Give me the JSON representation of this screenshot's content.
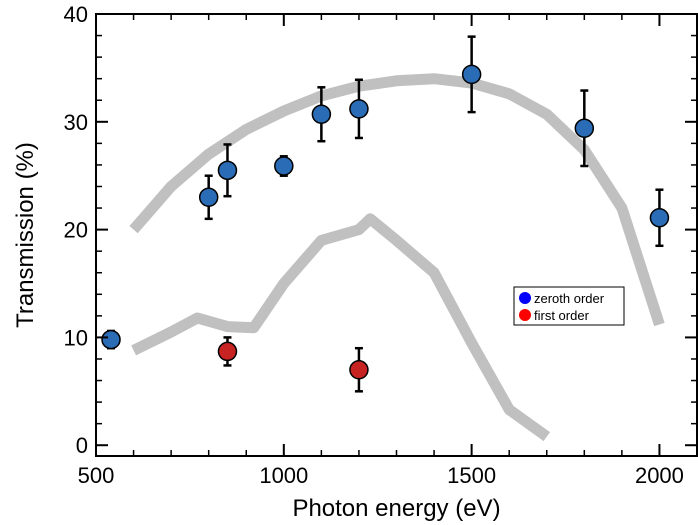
{
  "chart_data": {
    "type": "scatter",
    "xlabel": "Photon energy (eV)",
    "ylabel": "Transmission (%)",
    "xlim": [
      500,
      2100
    ],
    "ylim": [
      -1,
      40
    ],
    "x_ticks": [
      500,
      1000,
      1500,
      2000
    ],
    "y_ticks": [
      0,
      10,
      20,
      30,
      40
    ],
    "grid": false,
    "legend_position": "right",
    "series": [
      {
        "name": "zeroth order",
        "color": "#2b6cb6",
        "legend_color": "#0000ff",
        "points": [
          {
            "x": 540,
            "y": 9.8,
            "err": 0.8
          },
          {
            "x": 800,
            "y": 23.0,
            "err": 2.0
          },
          {
            "x": 850,
            "y": 25.5,
            "err": 2.4
          },
          {
            "x": 1000,
            "y": 25.9,
            "err": 0.9
          },
          {
            "x": 1100,
            "y": 30.7,
            "err": 2.5
          },
          {
            "x": 1200,
            "y": 31.2,
            "err": 2.7
          },
          {
            "x": 1500,
            "y": 34.4,
            "err": 3.5
          },
          {
            "x": 1800,
            "y": 29.4,
            "err": 3.5
          },
          {
            "x": 2000,
            "y": 21.1,
            "err": 2.6
          }
        ]
      },
      {
        "name": "first order",
        "color": "#c82323",
        "legend_color": "#ff0000",
        "points": [
          {
            "x": 850,
            "y": 8.7,
            "err": 1.3
          },
          {
            "x": 1200,
            "y": 7.0,
            "err": 2.0
          }
        ]
      }
    ],
    "model_curves": [
      {
        "color": "#c0c0c0",
        "x": [
          600,
          700,
          800,
          900,
          1000,
          1100,
          1200,
          1300,
          1400,
          1500,
          1600,
          1700,
          1800,
          1900,
          2000
        ],
        "y": [
          20.0,
          24.0,
          27.0,
          29.3,
          31.0,
          32.4,
          33.3,
          33.8,
          34.0,
          33.6,
          32.6,
          30.7,
          27.4,
          22.0,
          11.2
        ]
      },
      {
        "color": "#c0c0c0",
        "x": [
          600,
          700,
          770,
          850,
          920,
          1000,
          1100,
          1200,
          1230,
          1300,
          1400,
          1500,
          1600,
          1700
        ],
        "y": [
          8.8,
          10.5,
          11.8,
          11.0,
          10.9,
          15.0,
          19.0,
          20.0,
          21.0,
          19.0,
          16.0,
          9.5,
          3.3,
          0.8
        ]
      }
    ]
  }
}
